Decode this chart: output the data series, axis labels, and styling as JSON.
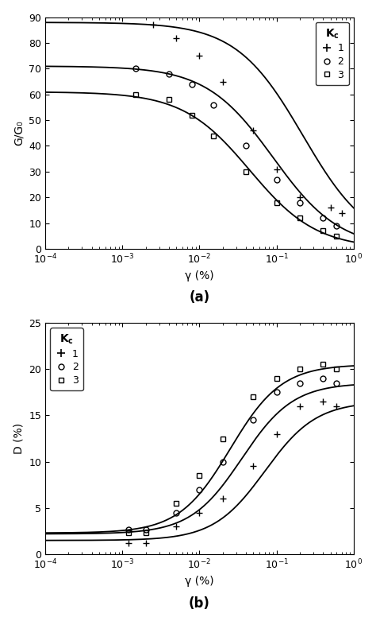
{
  "fig_width": 4.74,
  "fig_height": 7.81,
  "dpi": 100,
  "panel_a": {
    "title": "(a)",
    "xlabel": "γ (%)",
    "ylabel": "G/G₀",
    "xlim_log": [
      -4,
      0
    ],
    "ylim": [
      0,
      90
    ],
    "yticks": [
      0,
      10,
      20,
      30,
      40,
      50,
      60,
      70,
      80,
      90
    ],
    "kc1": {
      "G0": 88,
      "gamma_r": 0.22,
      "data_x": [
        0.0025,
        0.005,
        0.01,
        0.02,
        0.05,
        0.1,
        0.2,
        0.5,
        0.7
      ],
      "data_y": [
        87,
        82,
        75,
        65,
        46,
        31,
        20,
        16,
        14
      ]
    },
    "kc2": {
      "G0": 71,
      "gamma_r": 0.09,
      "data_x": [
        0.0015,
        0.004,
        0.008,
        0.015,
        0.04,
        0.1,
        0.2,
        0.4,
        0.6
      ],
      "data_y": [
        70,
        68,
        64,
        56,
        40,
        27,
        18,
        12,
        9
      ]
    },
    "kc3": {
      "G0": 61,
      "gamma_r": 0.045,
      "data_x": [
        0.0015,
        0.004,
        0.008,
        0.015,
        0.04,
        0.1,
        0.2,
        0.4,
        0.6
      ],
      "data_y": [
        60,
        58,
        52,
        44,
        30,
        18,
        12,
        7,
        5
      ]
    }
  },
  "panel_b": {
    "title": "(b)",
    "xlabel": "γ (%)",
    "ylabel": "D (%)",
    "xlim_log": [
      -4,
      0
    ],
    "ylim": [
      0,
      25
    ],
    "yticks": [
      0,
      5,
      10,
      15,
      20,
      25
    ],
    "kc1": {
      "D_min": 1.5,
      "D_max": 16.5,
      "log_gamma_mid": -1.15,
      "steepness": 3.0,
      "data_x": [
        0.0012,
        0.002,
        0.005,
        0.01,
        0.02,
        0.05,
        0.1,
        0.2,
        0.4,
        0.6
      ],
      "data_y": [
        1.2,
        1.2,
        3.0,
        4.5,
        6.0,
        9.5,
        13.0,
        16.0,
        16.5,
        16.0
      ]
    },
    "kc2": {
      "D_min": 2.2,
      "D_max": 18.5,
      "log_gamma_mid": -1.45,
      "steepness": 3.0,
      "data_x": [
        0.0012,
        0.002,
        0.005,
        0.01,
        0.02,
        0.05,
        0.1,
        0.2,
        0.4,
        0.6
      ],
      "data_y": [
        2.7,
        2.7,
        4.5,
        7.0,
        10.0,
        14.5,
        17.5,
        18.5,
        19.0,
        18.5
      ]
    },
    "kc3": {
      "D_min": 2.3,
      "D_max": 20.5,
      "log_gamma_mid": -1.6,
      "steepness": 3.0,
      "data_x": [
        0.0012,
        0.002,
        0.005,
        0.01,
        0.02,
        0.05,
        0.1,
        0.2,
        0.4,
        0.6
      ],
      "data_y": [
        2.3,
        2.3,
        5.5,
        8.5,
        12.5,
        17.0,
        19.0,
        20.0,
        20.5,
        20.0
      ]
    }
  }
}
